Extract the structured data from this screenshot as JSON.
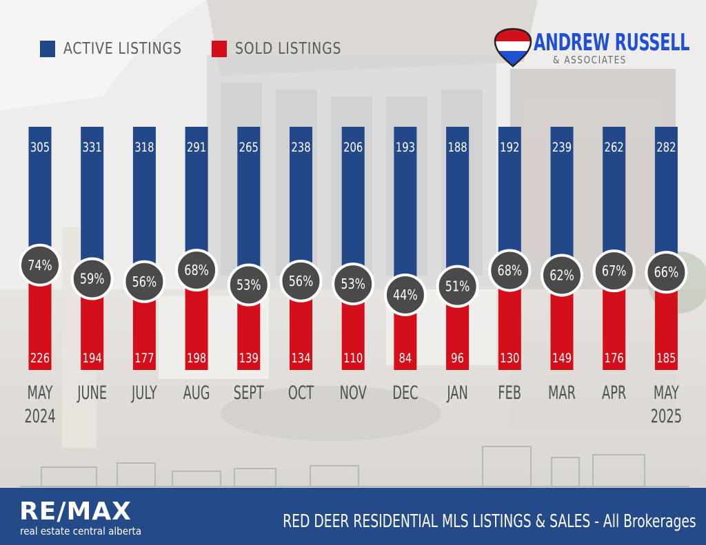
{
  "legend": {
    "active_label": "ACTIVE LISTINGS",
    "sold_label": "SOLD LISTINGS",
    "active_color": "#23488a",
    "sold_color": "#d40f1a"
  },
  "brand": {
    "name": "ANDREW RUSSELL",
    "sub": "& ASSOCIATES"
  },
  "footer": {
    "logo_text": "RE/MAX",
    "logo_sub": "real estate central alberta",
    "title": "RED DEER RESIDENTIAL MLS LISTINGS & SALES - All Brokerages",
    "color": "#244a87"
  },
  "chart_data": {
    "type": "bar",
    "stacked": true,
    "categories": [
      [
        "MAY",
        "2024"
      ],
      [
        "JUNE"
      ],
      [
        "JULY"
      ],
      [
        "AUG"
      ],
      [
        "SEPT"
      ],
      [
        "OCT"
      ],
      [
        "NOV"
      ],
      [
        "DEC"
      ],
      [
        "JAN"
      ],
      [
        "FEB"
      ],
      [
        "MAR"
      ],
      [
        "APR"
      ],
      [
        "MAY",
        "2025"
      ]
    ],
    "series": [
      {
        "name": "ACTIVE LISTINGS",
        "values": [
          305,
          331,
          318,
          291,
          265,
          238,
          206,
          193,
          188,
          192,
          239,
          262,
          282
        ]
      },
      {
        "name": "SOLD LISTINGS",
        "values": [
          226,
          194,
          177,
          198,
          139,
          134,
          110,
          84,
          96,
          130,
          149,
          176,
          185
        ]
      }
    ],
    "ratio_labels": [
      "74%",
      "59%",
      "56%",
      "68%",
      "53%",
      "56%",
      "53%",
      "44%",
      "51%",
      "68%",
      "62%",
      "67%",
      "66%"
    ],
    "ratios": [
      74,
      59,
      56,
      68,
      53,
      56,
      53,
      44,
      51,
      68,
      62,
      67,
      66
    ]
  }
}
